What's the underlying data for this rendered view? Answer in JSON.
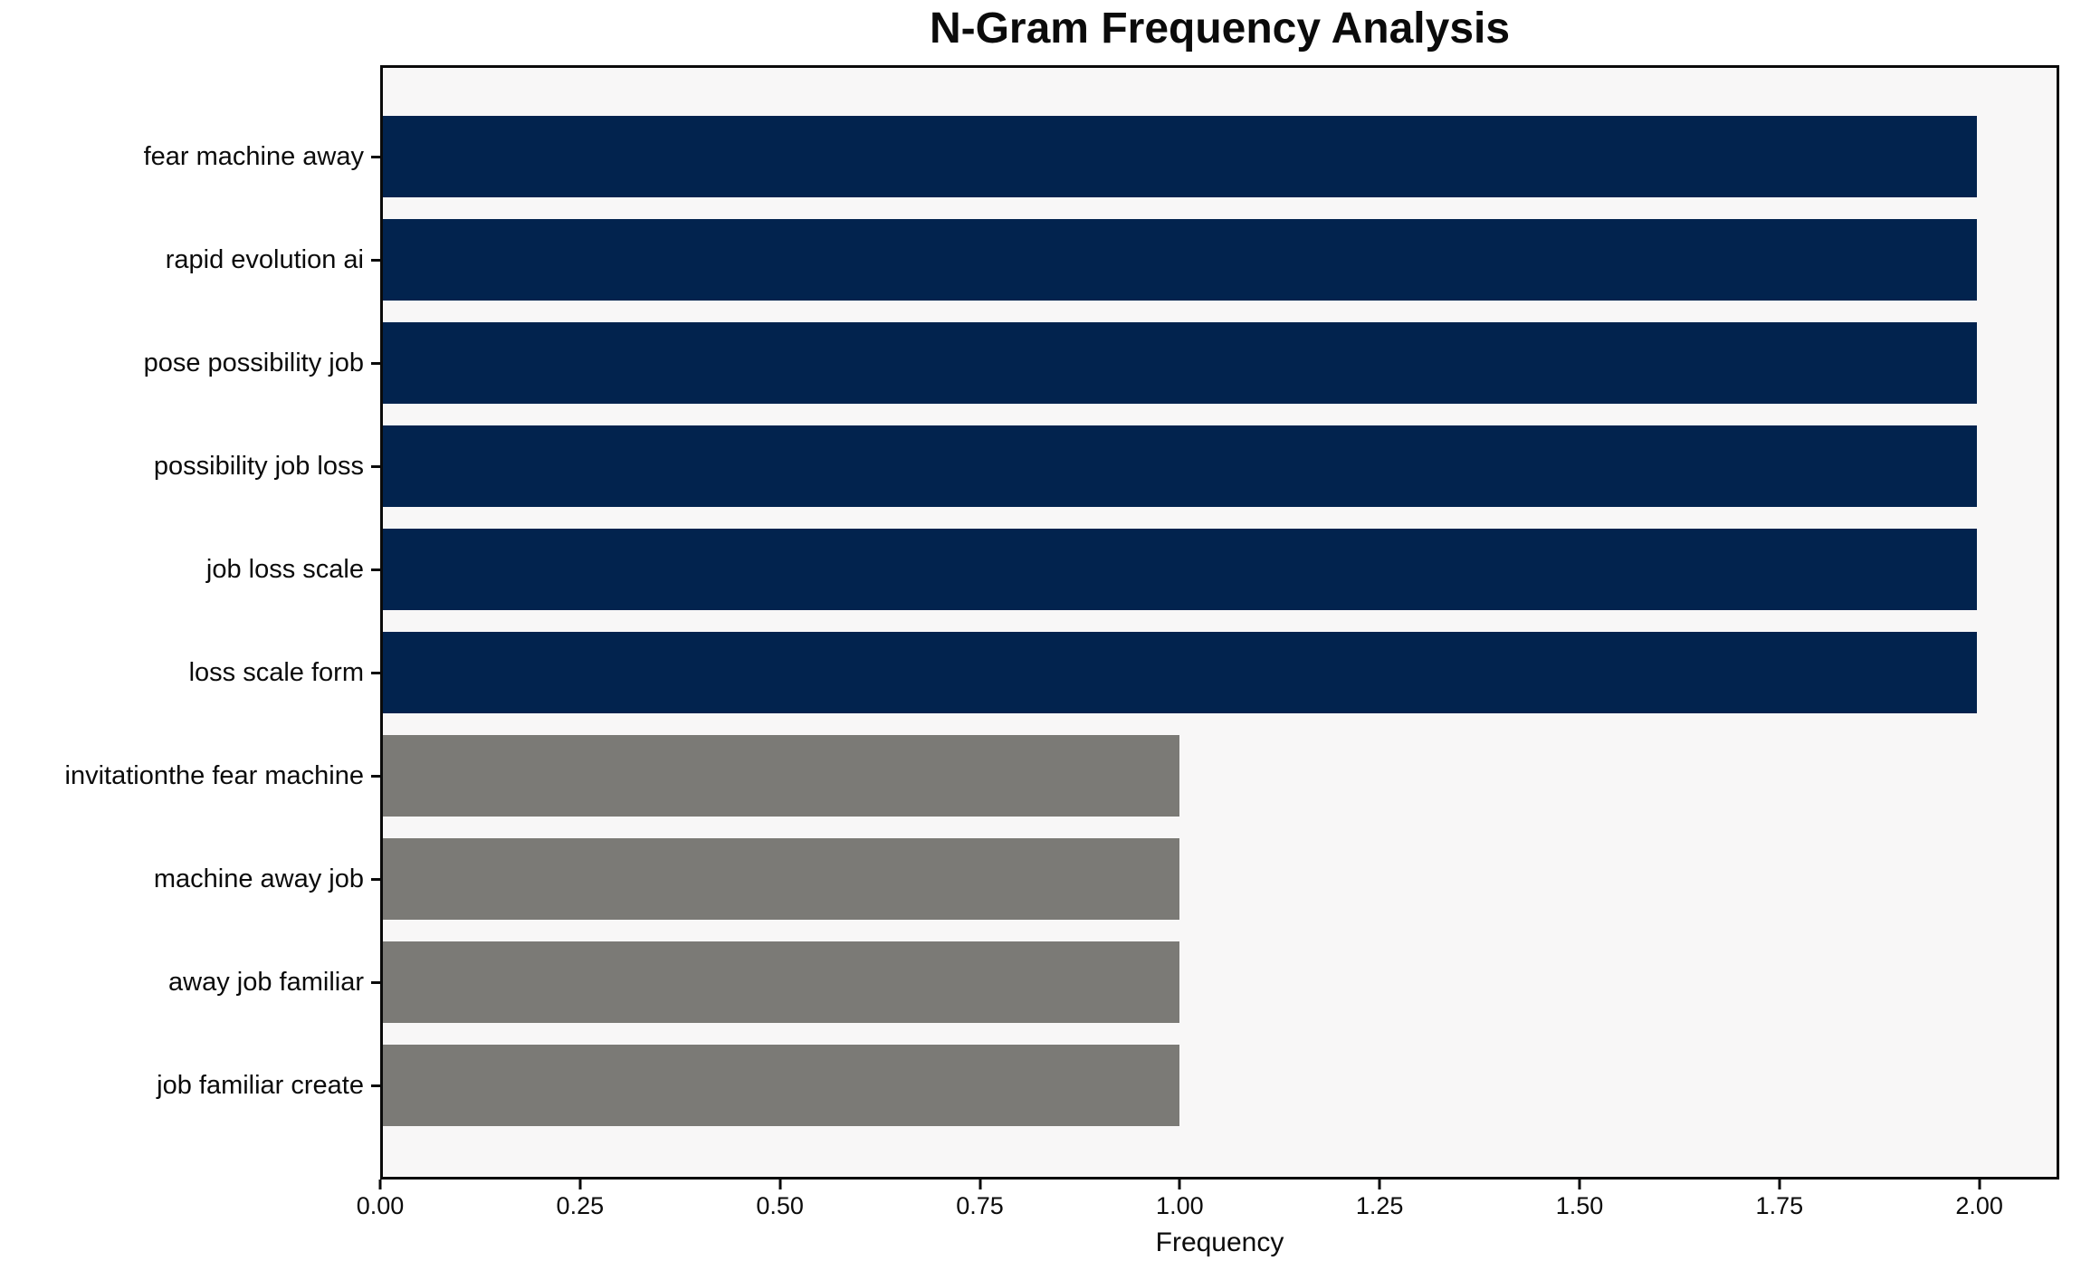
{
  "chart_data": {
    "type": "bar",
    "orientation": "horizontal",
    "title": "N-Gram Frequency Analysis",
    "xlabel": "Frequency",
    "ylabel": "",
    "categories": [
      "fear machine away",
      "rapid evolution ai",
      "pose possibility job",
      "possibility job loss",
      "job loss scale",
      "loss scale form",
      "invitationthe fear machine",
      "machine away job",
      "away job familiar",
      "job familiar create"
    ],
    "values": [
      2,
      2,
      2,
      2,
      2,
      2,
      1,
      1,
      1,
      1
    ],
    "bar_colors": [
      "#02234E",
      "#02234E",
      "#02234E",
      "#02234E",
      "#02234E",
      "#02234E",
      "#7B7A76",
      "#7B7A76",
      "#7B7A76",
      "#7B7A76"
    ],
    "x_ticks": [
      0.0,
      0.25,
      0.5,
      0.75,
      1.0,
      1.25,
      1.5,
      1.75,
      2.0
    ],
    "x_tick_labels": [
      "0.00",
      "0.25",
      "0.50",
      "0.75",
      "1.00",
      "1.25",
      "1.50",
      "1.75",
      "2.00"
    ],
    "xlim": [
      0,
      2.1
    ],
    "grid": false,
    "legend": null,
    "plot_bg_color": "#F8F7F7",
    "figure_bg_color": "#FFFFFF",
    "axis_color": "#0A0A0A"
  }
}
